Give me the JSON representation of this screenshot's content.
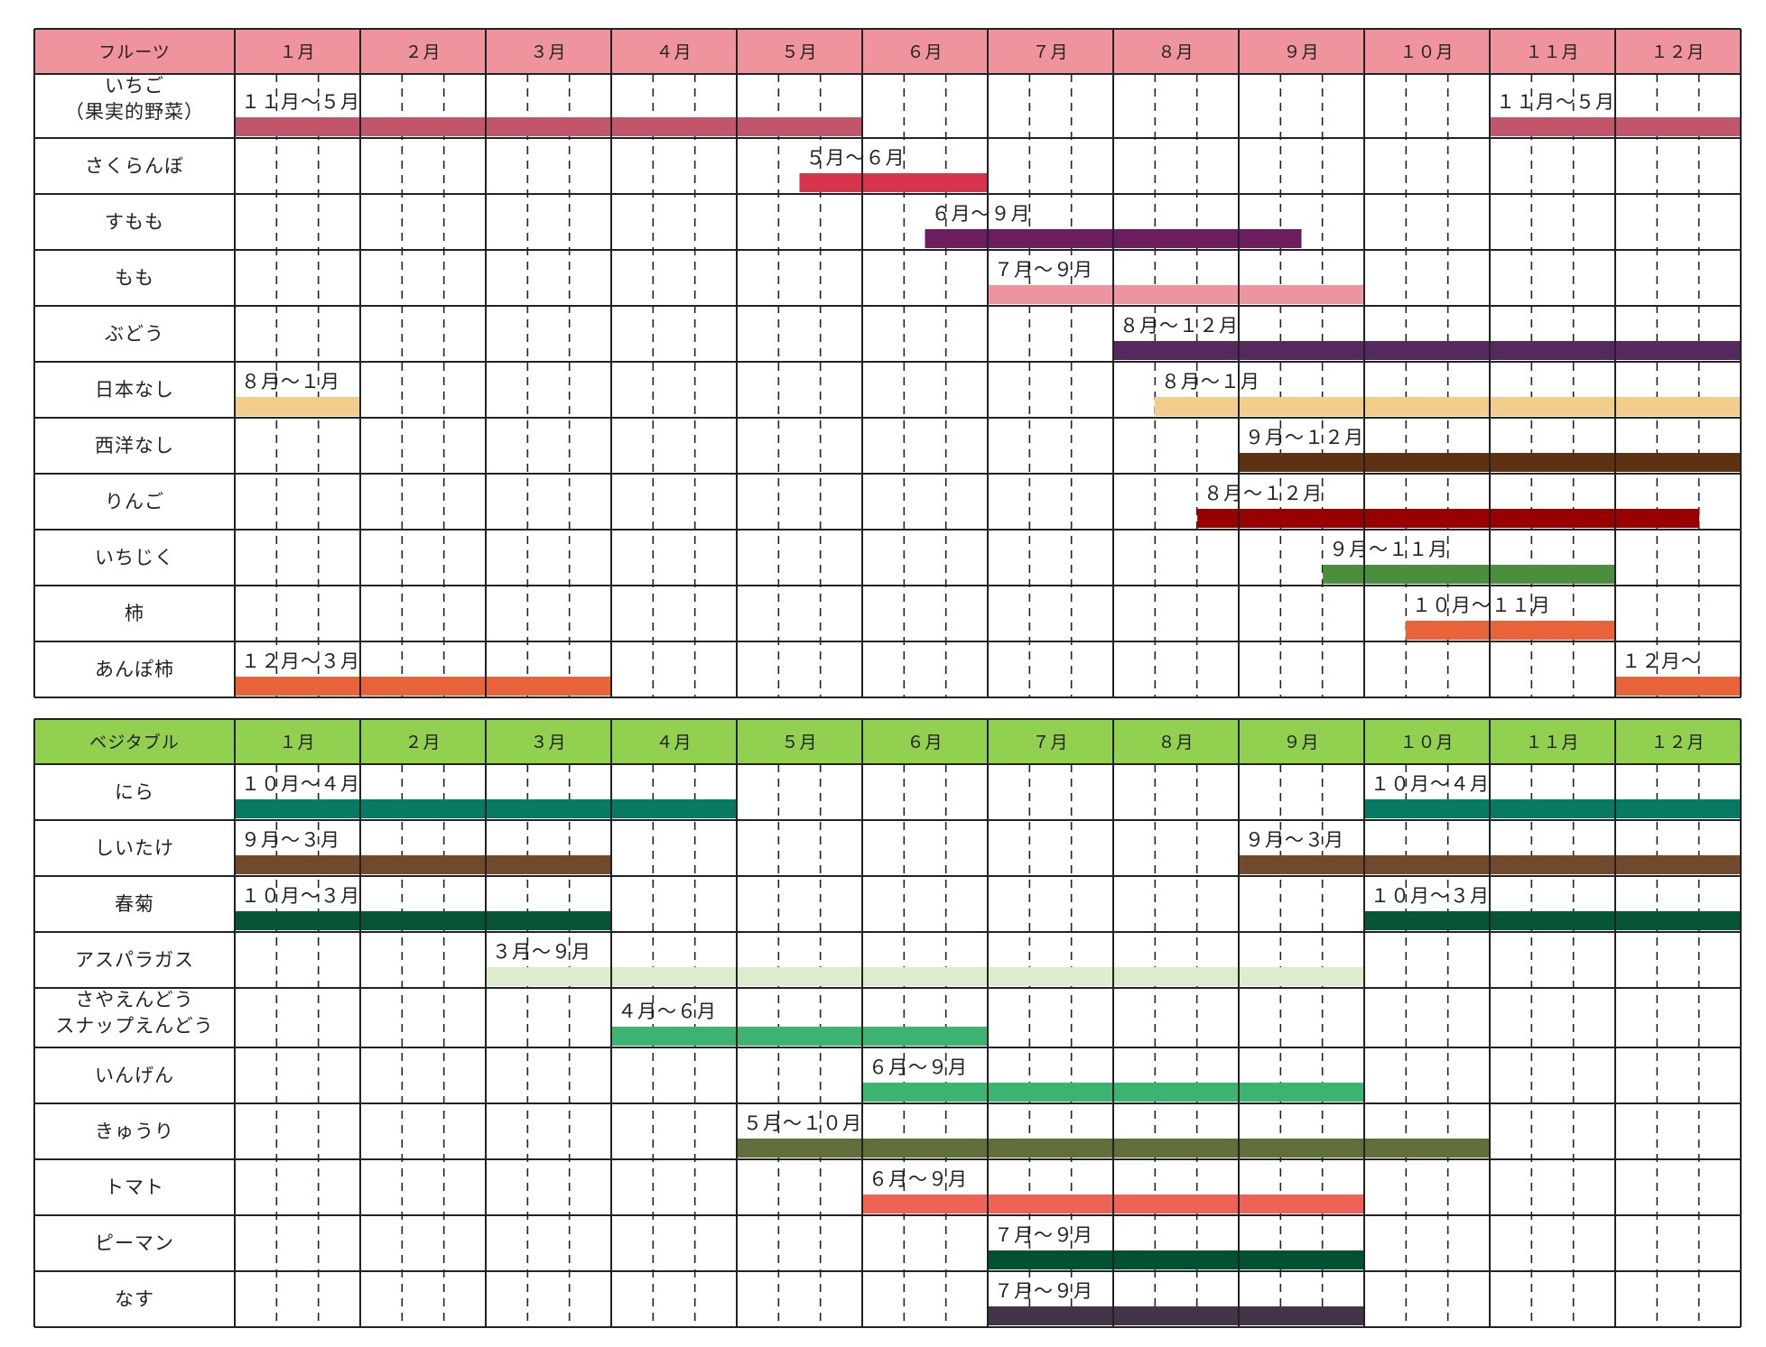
{
  "months": [
    "１月",
    "２月",
    "３月",
    "４月",
    "５月",
    "６月",
    "７月",
    "８月",
    "９月",
    "１０月",
    "１１月",
    "１２月"
  ],
  "chart_data": [
    {
      "type": "gantt",
      "header_label": "フルーツ",
      "header_color": "#ef949d",
      "rows": [
        {
          "name": [
            "いちご",
            "（果実的野菜）"
          ],
          "bars": [
            {
              "label": "１１月～５月",
              "start": 1,
              "end": 6,
              "color": "#c1556a"
            },
            {
              "label": "１１月～５月",
              "start": 11,
              "end": 13,
              "color": "#c1556a"
            }
          ]
        },
        {
          "name": [
            "さくらんぼ"
          ],
          "bars": [
            {
              "label": "５月～６月",
              "start": 5.5,
              "end": 7,
              "color": "#d7344d"
            }
          ]
        },
        {
          "name": [
            "すもも"
          ],
          "bars": [
            {
              "label": "６月～９月",
              "start": 6.5,
              "end": 9.5,
              "color": "#6b1d5f"
            }
          ]
        },
        {
          "name": [
            "もも"
          ],
          "bars": [
            {
              "label": "７月～９月",
              "start": 7,
              "end": 10,
              "color": "#ee949e"
            }
          ]
        },
        {
          "name": [
            "ぶどう"
          ],
          "bars": [
            {
              "label": "８月～１２月",
              "start": 8,
              "end": 13,
              "color": "#53295e"
            }
          ]
        },
        {
          "name": [
            "日本なし"
          ],
          "bars": [
            {
              "label": "８月～１月",
              "start": 1,
              "end": 2,
              "color": "#f2cd8b"
            },
            {
              "label": "８月～１月",
              "start": 8.33,
              "end": 13,
              "color": "#f2cd8b"
            }
          ]
        },
        {
          "name": [
            "西洋なし"
          ],
          "bars": [
            {
              "label": "９月～１２月",
              "start": 9,
              "end": 13,
              "color": "#5c3212"
            }
          ]
        },
        {
          "name": [
            "りんご"
          ],
          "bars": [
            {
              "label": "８月～１２月",
              "start": 8.67,
              "end": 12.67,
              "color": "#990000"
            }
          ]
        },
        {
          "name": [
            "いちじく"
          ],
          "bars": [
            {
              "label": "９月～１１月",
              "start": 9.67,
              "end": 12,
              "color": "#4a8e3e"
            }
          ]
        },
        {
          "name": [
            "柿"
          ],
          "bars": [
            {
              "label": "１０月～１１月",
              "start": 10.33,
              "end": 12,
              "color": "#e8623a"
            }
          ]
        },
        {
          "name": [
            "あんぽ柿"
          ],
          "bars": [
            {
              "label": "１２月～３月",
              "start": 1,
              "end": 4,
              "color": "#e8623a"
            },
            {
              "label": "１２月～",
              "start": 12,
              "end": 13,
              "color": "#e8623a"
            }
          ]
        }
      ]
    },
    {
      "type": "gantt",
      "header_label": "ベジタブル",
      "header_color": "#92d050",
      "rows": [
        {
          "name": [
            "にら"
          ],
          "bars": [
            {
              "label": "１０月～４月",
              "start": 1,
              "end": 5,
              "color": "#067a62"
            },
            {
              "label": "１０月～４月",
              "start": 10,
              "end": 13,
              "color": "#067a62"
            }
          ]
        },
        {
          "name": [
            "しいたけ"
          ],
          "bars": [
            {
              "label": "９月～３月",
              "start": 1,
              "end": 4,
              "color": "#6f4a2c"
            },
            {
              "label": "９月～３月",
              "start": 9,
              "end": 13,
              "color": "#6f4a2c"
            }
          ]
        },
        {
          "name": [
            "春菊"
          ],
          "bars": [
            {
              "label": "１０月～３月",
              "start": 1,
              "end": 4,
              "color": "#065534"
            },
            {
              "label": "１０月～３月",
              "start": 10,
              "end": 13,
              "color": "#065534"
            }
          ]
        },
        {
          "name": [
            "アスパラガス"
          ],
          "bars": [
            {
              "label": "３月～９月",
              "start": 3,
              "end": 10,
              "color": "#dceccd"
            }
          ]
        },
        {
          "name": [
            "さやえんどう",
            "スナップえんどう"
          ],
          "bars": [
            {
              "label": "４月～６月",
              "start": 4,
              "end": 7,
              "color": "#3cb371"
            }
          ]
        },
        {
          "name": [
            "いんげん"
          ],
          "bars": [
            {
              "label": "６月～９月",
              "start": 6,
              "end": 10,
              "color": "#3cb371"
            }
          ]
        },
        {
          "name": [
            "きゅうり"
          ],
          "bars": [
            {
              "label": "５月～１０月",
              "start": 5,
              "end": 11,
              "color": "#5e6f3c"
            }
          ]
        },
        {
          "name": [
            "トマト"
          ],
          "bars": [
            {
              "label": "６月～９月",
              "start": 6,
              "end": 10,
              "color": "#ee6356"
            }
          ]
        },
        {
          "name": [
            "ピーマン"
          ],
          "bars": [
            {
              "label": "７月～９月",
              "start": 7,
              "end": 10,
              "color": "#025230"
            }
          ]
        },
        {
          "name": [
            "なす"
          ],
          "bars": [
            {
              "label": "７月～９月",
              "start": 7,
              "end": 10,
              "color": "#433448"
            }
          ]
        }
      ]
    }
  ]
}
